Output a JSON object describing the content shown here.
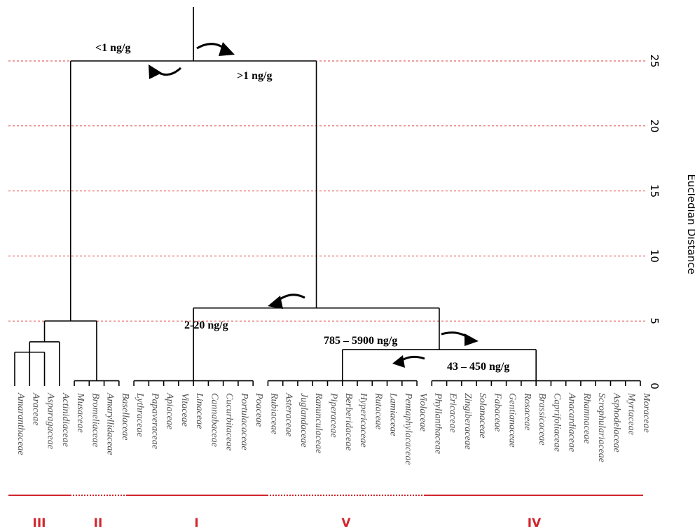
{
  "chart_data": {
    "type": "dendrogram",
    "y_axis": {
      "label": "Eucledian Distance",
      "ticks": [
        0,
        5,
        10,
        15,
        20,
        25
      ],
      "range": [
        0,
        25
      ]
    },
    "grid": {
      "horizontal": true,
      "values": [
        5,
        10,
        15,
        20,
        25
      ],
      "style": "dashed",
      "color": "#e23b3b"
    },
    "leaves": [
      "Amaranthaceae",
      "Araceae",
      "Asparagaceae",
      "Actinidiaceae",
      "Musaceae",
      "Bromeliaceae",
      "Amaryllidaceae",
      "Basellaceae",
      "Lythraceae",
      "Papaveraceae",
      "Apiaceae",
      "Vitaceae",
      "Linaceae",
      "Cannabaceae",
      "Cucurbitaceae",
      "Portulacaceae",
      "Poaceae",
      "Rubiaceae",
      "Asteraceae",
      "Juglandaceae",
      "Ranunculaceae",
      "Piperaceae",
      "Berberidaceae",
      "Hypericaceae",
      "Rutaceae",
      "Lamiaceae",
      "Pentaphylacaceae",
      "Violaceae",
      "Phyllanthaceae",
      "Ericaceae",
      "Zingiberaceae",
      "Solanaceae",
      "Fabaceae",
      "Gentianaceae",
      "Rosaceae",
      "Brassicaceae",
      "Caprifoliaceae",
      "Anacardiaceae",
      "Rhamnaceae",
      "Scrophulariaceae",
      "Asphodelaceae",
      "Myrtaceae",
      "Moraceae"
    ],
    "clusters": [
      {
        "id": "c1",
        "members": [
          0,
          2
        ],
        "distance": 2.6
      },
      {
        "id": "c2",
        "members": [
          "c1",
          3
        ],
        "distance": 3.4
      },
      {
        "id": "c3",
        "members": [
          4,
          7
        ],
        "distance": 0.4
      },
      {
        "id": "c4",
        "members": [
          "c2",
          "c3"
        ],
        "distance": 5.0
      },
      {
        "id": "c5",
        "members": [
          8,
          16
        ],
        "distance": 0.4
      },
      {
        "id": "c6",
        "members": [
          17,
          27
        ],
        "distance": 0.4
      },
      {
        "id": "c7",
        "members": [
          28,
          42
        ],
        "distance": 0.4
      },
      {
        "id": "c8",
        "members": [
          "c6",
          "c7"
        ],
        "distance": 2.8
      },
      {
        "id": "c9",
        "members": [
          "c5",
          "c8"
        ],
        "distance": 6.0
      },
      {
        "id": "root",
        "members": [
          "c4",
          "c9"
        ],
        "distance": 25.0
      }
    ],
    "annotations": [
      "<1 ng/g",
      ">1 ng/g",
      "2-20 ng/g",
      "785 – 5900 ng/g",
      "43 – 450 ng/g"
    ],
    "groups": [
      {
        "label": "III",
        "leaves": [
          0,
          3
        ],
        "line": "solid"
      },
      {
        "label": "II",
        "leaves": [
          4,
          7
        ],
        "line": "dotted"
      },
      {
        "label": "I",
        "leaves": [
          8,
          16
        ],
        "line": "solid"
      },
      {
        "label": "V",
        "leaves": [
          17,
          27
        ],
        "line": "dotted"
      },
      {
        "label": "IV",
        "leaves": [
          28,
          42
        ],
        "line": "solid"
      }
    ],
    "colors": {
      "grid": "#e23b3b",
      "groups": "#d0262d",
      "tree": "#000000",
      "leaf_text": "#555555"
    }
  }
}
